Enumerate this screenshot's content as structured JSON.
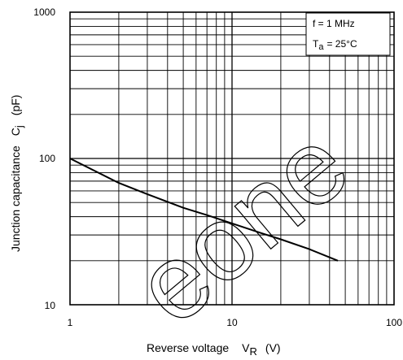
{
  "chart_data": {
    "type": "line",
    "title": "",
    "xlabel": "Reverse voltage",
    "xlabel_symbol": "V",
    "xlabel_subscript": "R",
    "xlabel_unit": "(V)",
    "ylabel": "Junction capacitance",
    "ylabel_symbol": "C",
    "ylabel_subscript": "j",
    "ylabel_unit": "(pF)",
    "xscale": "log",
    "yscale": "log",
    "xlim": [
      1,
      100
    ],
    "ylim": [
      10,
      1000
    ],
    "grid": true,
    "x_tick_labels": [
      "1",
      "10",
      "100"
    ],
    "y_tick_labels": [
      "10",
      "100",
      "1000"
    ],
    "conditions": {
      "line1": "f = 1 MHz",
      "line2_symbol": "T",
      "line2_subscript": "a",
      "line2_value": "= 25°C",
      "placement": "top-right"
    },
    "series": [
      {
        "x": [
          1,
          2,
          3,
          5,
          7,
          10,
          15,
          20,
          30,
          45
        ],
        "y": [
          100,
          68,
          57,
          46,
          41,
          36,
          31,
          28,
          24,
          20
        ]
      }
    ],
    "watermark": "eone"
  }
}
